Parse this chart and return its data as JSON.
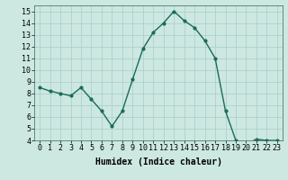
{
  "x": [
    0,
    1,
    2,
    3,
    4,
    5,
    6,
    7,
    8,
    9,
    10,
    11,
    12,
    13,
    14,
    15,
    16,
    17,
    18,
    19,
    20,
    21,
    22,
    23
  ],
  "y": [
    8.5,
    8.2,
    8.0,
    7.8,
    8.5,
    7.5,
    6.5,
    5.2,
    6.5,
    9.2,
    11.8,
    13.2,
    14.0,
    15.0,
    14.2,
    13.6,
    12.5,
    11.0,
    6.5,
    4.0,
    3.7,
    4.1,
    4.0,
    4.0
  ],
  "line_color": "#1a6b5a",
  "marker": "o",
  "marker_size": 2.0,
  "line_width": 1.0,
  "xlabel": "Humidex (Indice chaleur)",
  "xlim": [
    -0.5,
    23.5
  ],
  "ylim": [
    4,
    15.5
  ],
  "yticks": [
    4,
    5,
    6,
    7,
    8,
    9,
    10,
    11,
    12,
    13,
    14,
    15
  ],
  "xticks": [
    0,
    1,
    2,
    3,
    4,
    5,
    6,
    7,
    8,
    9,
    10,
    11,
    12,
    13,
    14,
    15,
    16,
    17,
    18,
    19,
    20,
    21,
    22,
    23
  ],
  "bg_color": "#cce8e0",
  "grid_color": "#aacccc",
  "xlabel_fontsize": 7,
  "tick_fontsize": 6,
  "ylabel_fontsize": 6
}
